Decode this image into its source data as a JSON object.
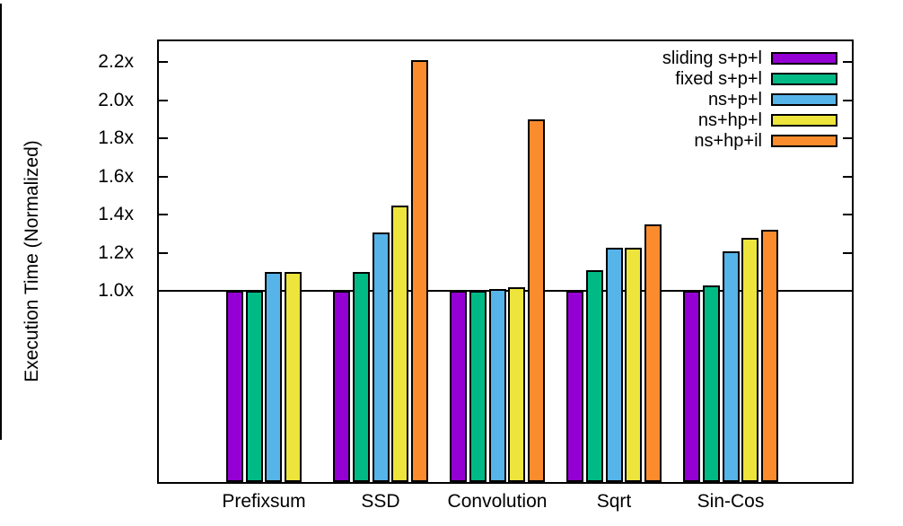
{
  "page": {
    "background": "#ffffff",
    "axis_color": "#000000"
  },
  "chart_data": {
    "type": "bar",
    "title": "",
    "xlabel": "",
    "ylabel": "Execution Time (Normalized)",
    "categories": [
      "Prefixsum",
      "SSD",
      "Convolution",
      "Sqrt",
      "Sin-Cos"
    ],
    "series": [
      {
        "name": "sliding s+p+l",
        "color": "#9400d3",
        "values": [
          1.0,
          1.0,
          1.0,
          1.0,
          1.0
        ]
      },
      {
        "name": "fixed s+p+l",
        "color": "#00ba86",
        "values": [
          1.0,
          1.1,
          1.0,
          1.11,
          1.03
        ]
      },
      {
        "name": "ns+p+l",
        "color": "#56b4e9",
        "values": [
          1.1,
          1.31,
          1.01,
          1.23,
          1.21
        ]
      },
      {
        "name": "ns+hp+l",
        "color": "#ede43c",
        "values": [
          1.1,
          1.45,
          1.02,
          1.23,
          1.28
        ]
      },
      {
        "name": "ns+hp+il",
        "color": "#fb8c2e",
        "values": [
          null,
          2.21,
          1.9,
          1.35,
          1.32
        ]
      }
    ],
    "ylim": [
      0,
      2.31
    ],
    "yticks": [
      1.0,
      1.2,
      1.4,
      1.6,
      1.8,
      2.0,
      2.2
    ],
    "ytick_suffix": "x",
    "baseline": 1.0,
    "grid": false,
    "legend_position": "top-right-inside"
  }
}
